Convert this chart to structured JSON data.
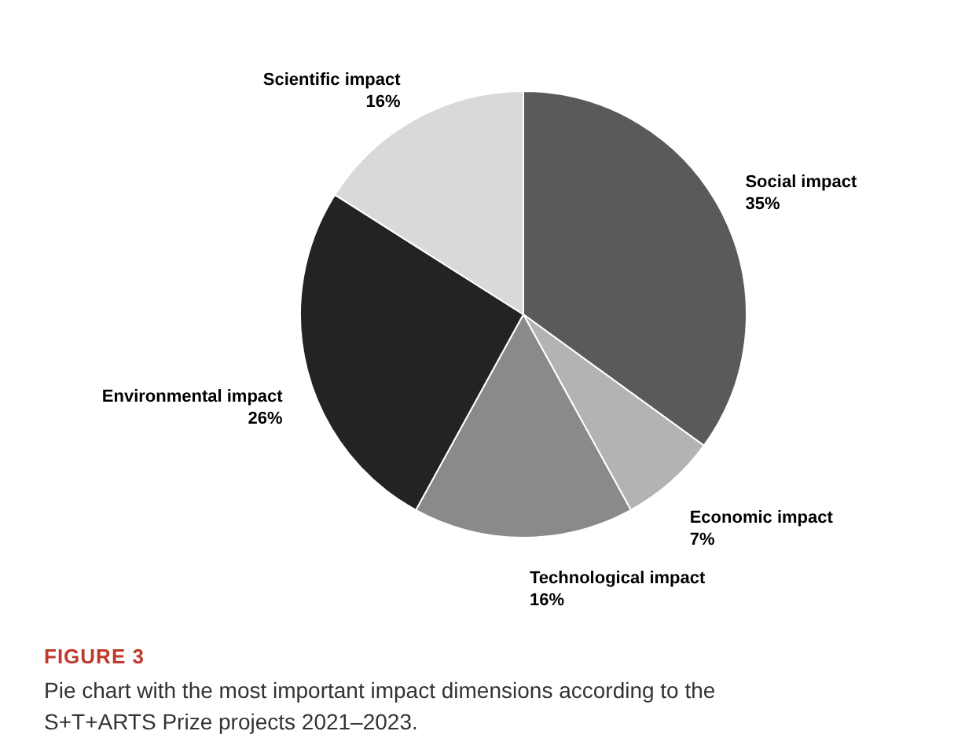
{
  "chart_data": {
    "type": "pie",
    "categories": [
      "Social impact",
      "Economic impact",
      "Technological impact",
      "Environmental impact",
      "Scientific impact"
    ],
    "values": [
      35,
      7,
      16,
      26,
      16
    ],
    "colors": [
      "#5a5a5a",
      "#b3b3b3",
      "#8a8a8a",
      "#232323",
      "#d9d9d9"
    ],
    "value_labels": [
      "35%",
      "7%",
      "16%",
      "26%",
      "16%"
    ],
    "annotations": [
      "FIGURE 3",
      "Pie chart with the most important impact dimensions according to the S+T+ARTS Prize projects 2021–2023."
    ]
  }
}
